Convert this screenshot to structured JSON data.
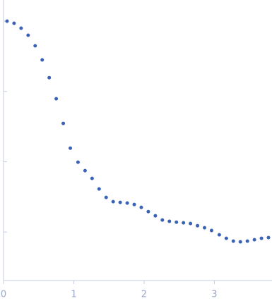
{
  "chart_data": {
    "type": "scatter",
    "yscale": "log",
    "color": "#3a62b5",
    "x": [
      0.05,
      0.15,
      0.25,
      0.35,
      0.45,
      0.55,
      0.65,
      0.75,
      0.85,
      0.95,
      1.06,
      1.16,
      1.26,
      1.36,
      1.46,
      1.56,
      1.66,
      1.76,
      1.86,
      1.96,
      2.06,
      2.16,
      2.26,
      2.36,
      2.46,
      2.56,
      2.66,
      2.76,
      2.86,
      2.96,
      3.07,
      3.17,
      3.27,
      3.37,
      3.47,
      3.57,
      3.67,
      3.77
    ],
    "values": [
      1,
      0.933,
      0.794,
      0.631,
      0.446,
      0.281,
      0.157,
      0.0787,
      0.0351,
      0.0156,
      0.00984,
      0.00746,
      0.00579,
      0.00409,
      0.0031,
      0.0027,
      0.00264,
      0.00258,
      0.00246,
      0.00224,
      0.00195,
      0.0017,
      0.00148,
      0.00142,
      0.00138,
      0.00135,
      0.00132,
      0.00123,
      0.00115,
      0.00105,
      0.000912,
      0.000813,
      0.000741,
      0.000724,
      0.000741,
      0.000776,
      0.000813,
      0.000832
    ],
    "xlim": [
      0,
      3.82
    ],
    "xticks": [
      0,
      1,
      2,
      3
    ],
    "ylim": [
      0.000204,
      2.0
    ],
    "yticks": [
      0.001,
      0.01,
      0.1,
      1
    ]
  }
}
